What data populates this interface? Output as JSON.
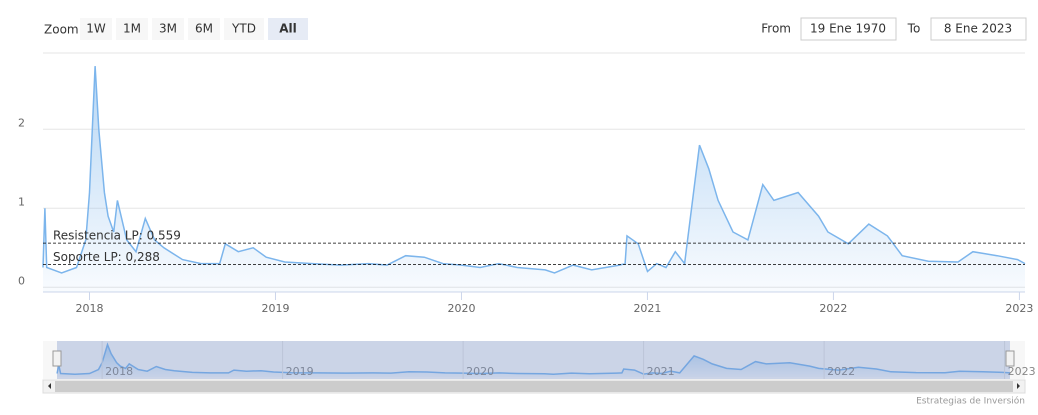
{
  "chart_data": {
    "type": "area",
    "x": [
      2017.75,
      2017.76,
      2017.77,
      2017.85,
      2017.93,
      2017.98,
      2018.0,
      2018.03,
      2018.05,
      2018.08,
      2018.1,
      2018.13,
      2018.15,
      2018.2,
      2018.25,
      2018.3,
      2018.35,
      2018.4,
      2018.5,
      2018.6,
      2018.7,
      2018.73,
      2018.8,
      2018.88,
      2018.95,
      2019.05,
      2019.2,
      2019.35,
      2019.5,
      2019.6,
      2019.7,
      2019.8,
      2019.9,
      2020.0,
      2020.1,
      2020.2,
      2020.3,
      2020.45,
      2020.5,
      2020.6,
      2020.7,
      2020.85,
      2020.88,
      2020.89,
      2020.95,
      2021.0,
      2021.05,
      2021.1,
      2021.15,
      2021.2,
      2021.28,
      2021.33,
      2021.38,
      2021.46,
      2021.54,
      2021.62,
      2021.68,
      2021.81,
      2021.92,
      2021.97,
      2022.08,
      2022.19,
      2022.29,
      2022.37,
      2022.51,
      2022.67,
      2022.75,
      2022.88,
      2022.99,
      2023.03
    ],
    "series": [
      {
        "color": "#7cb5ec",
        "values": [
          0.25,
          1.0,
          0.25,
          0.18,
          0.25,
          0.6,
          1.2,
          2.8,
          2.0,
          1.2,
          0.9,
          0.7,
          1.1,
          0.6,
          0.45,
          0.87,
          0.6,
          0.5,
          0.35,
          0.3,
          0.3,
          0.55,
          0.45,
          0.5,
          0.38,
          0.32,
          0.3,
          0.28,
          0.3,
          0.28,
          0.4,
          0.38,
          0.3,
          0.28,
          0.25,
          0.3,
          0.25,
          0.22,
          0.18,
          0.28,
          0.22,
          0.28,
          0.3,
          0.65,
          0.55,
          0.2,
          0.3,
          0.25,
          0.45,
          0.3,
          1.8,
          1.5,
          1.1,
          0.7,
          0.6,
          1.3,
          1.1,
          1.2,
          0.9,
          0.7,
          0.55,
          0.8,
          0.65,
          0.4,
          0.33,
          0.32,
          0.45,
          0.4,
          0.35,
          0.3
        ]
      }
    ],
    "xlim": [
      2017.75,
      2023.03
    ],
    "ylim": [
      -0.06,
      2.94
    ],
    "xticks": [
      2018,
      2019,
      2020,
      2021,
      2022,
      2023
    ],
    "yticks": [
      0,
      1,
      2
    ],
    "grid": true,
    "plot_lines": [
      {
        "value": 0.559,
        "label": "Resistencia LP: 0,559"
      },
      {
        "value": 0.288,
        "label": "Soporte LP: 0,288"
      }
    ]
  },
  "range_selector": {
    "zoom_label": "Zoom",
    "buttons": [
      "1W",
      "1M",
      "3M",
      "6M",
      "YTD",
      "All"
    ],
    "selected": 5,
    "from_label": "From",
    "from": "19 Ene 1970",
    "to_label": "To",
    "to": "8 Ene 2023"
  },
  "credits": "Estrategias de Inversión"
}
